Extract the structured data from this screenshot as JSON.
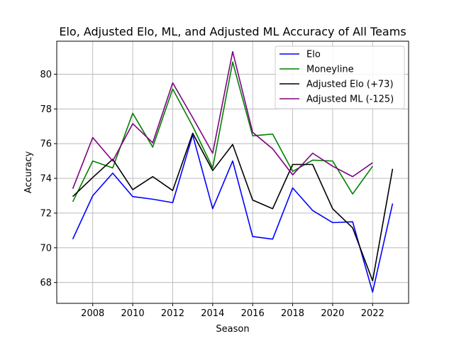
{
  "chart_data": {
    "type": "line",
    "title": "Elo, Adjusted Elo, ML, and Adjusted ML Accuracy of All Teams",
    "xlabel": "Season",
    "ylabel": "Accuracy",
    "xlim": [
      2006.2,
      2023.8
    ],
    "ylim": [
      66.8,
      81.9
    ],
    "xticks": [
      2008,
      2010,
      2012,
      2014,
      2016,
      2018,
      2020,
      2022
    ],
    "yticks": [
      68,
      70,
      72,
      74,
      76,
      78,
      80
    ],
    "grid": true,
    "legend_position": "top-right",
    "series": [
      {
        "name": "Elo",
        "color": "#0000ff",
        "x": [
          2007,
          2008,
          2009,
          2010,
          2011,
          2012,
          2013,
          2014,
          2015,
          2016,
          2017,
          2018,
          2019,
          2020,
          2021,
          2022,
          2023
        ],
        "values": [
          70.5,
          73.0,
          74.3,
          72.95,
          72.8,
          72.6,
          76.5,
          72.25,
          75.0,
          70.65,
          70.5,
          73.45,
          72.15,
          71.45,
          71.5,
          67.45,
          72.55
        ]
      },
      {
        "name": "Moneyline",
        "color": "#008000",
        "x": [
          2007,
          2008,
          2009,
          2010,
          2011,
          2012,
          2013,
          2014,
          2015,
          2016,
          2017,
          2018,
          2019,
          2020,
          2021,
          2022
        ],
        "values": [
          72.65,
          75.0,
          74.6,
          77.75,
          75.8,
          79.15,
          77.0,
          74.6,
          80.7,
          76.45,
          76.55,
          74.4,
          75.05,
          75.0,
          73.1,
          74.7
        ]
      },
      {
        "name": "Adjusted Elo (+73)",
        "color": "#000000",
        "x": [
          2007,
          2008,
          2009,
          2010,
          2011,
          2012,
          2013,
          2014,
          2015,
          2016,
          2017,
          2018,
          2019,
          2020,
          2021,
          2022,
          2023
        ],
        "values": [
          72.95,
          74.05,
          75.1,
          73.35,
          74.1,
          73.3,
          76.6,
          74.45,
          75.95,
          72.75,
          72.25,
          74.8,
          74.8,
          72.25,
          71.15,
          68.1,
          74.55
        ]
      },
      {
        "name": "Adjusted ML (-125)",
        "color": "#800080",
        "x": [
          2007,
          2008,
          2009,
          2010,
          2011,
          2012,
          2013,
          2014,
          2015,
          2016,
          2017,
          2018,
          2019,
          2020,
          2021,
          2022
        ],
        "values": [
          73.4,
          76.35,
          75.0,
          77.15,
          76.05,
          79.5,
          77.5,
          75.45,
          81.3,
          76.65,
          75.7,
          74.2,
          75.45,
          74.7,
          74.1,
          74.9
        ]
      }
    ]
  }
}
